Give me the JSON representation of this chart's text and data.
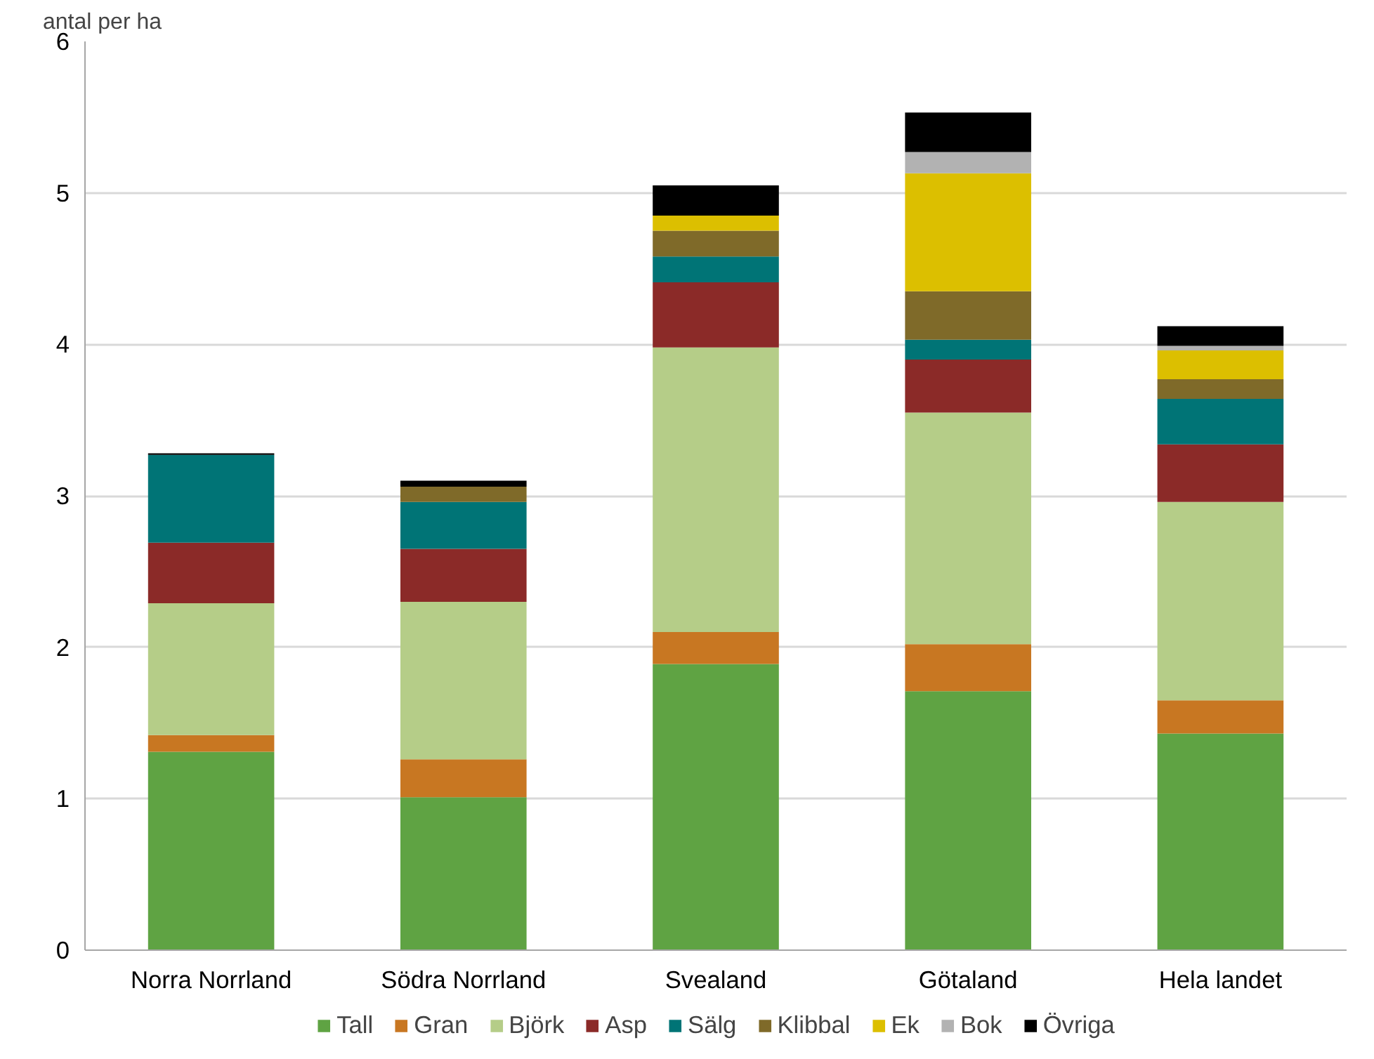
{
  "chart_data": {
    "type": "bar",
    "stacked": true,
    "ylabel": "antal per ha",
    "categories": [
      "Norra Norrland",
      "Södra Norrland",
      "Svealand",
      "Götaland",
      "Hela landet"
    ],
    "series": [
      {
        "name": "Tall",
        "color": "#5fa343",
        "values": [
          1.31,
          1.01,
          1.89,
          1.71,
          1.43
        ]
      },
      {
        "name": "Gran",
        "color": "#c87722",
        "values": [
          0.11,
          0.25,
          0.21,
          0.31,
          0.22
        ]
      },
      {
        "name": "Björk",
        "color": "#b5cd88",
        "values": [
          0.87,
          1.04,
          1.88,
          1.53,
          1.31
        ]
      },
      {
        "name": "Asp",
        "color": "#8b2a28",
        "values": [
          0.4,
          0.35,
          0.43,
          0.35,
          0.38
        ]
      },
      {
        "name": "Sälg",
        "color": "#007476",
        "values": [
          0.58,
          0.31,
          0.17,
          0.13,
          0.3
        ]
      },
      {
        "name": "Klibbal",
        "color": "#7f6a29",
        "values": [
          0,
          0.1,
          0.17,
          0.32,
          0.13
        ]
      },
      {
        "name": "Ek",
        "color": "#dcbf00",
        "values": [
          0,
          0,
          0.1,
          0.78,
          0.19
        ]
      },
      {
        "name": "Bok",
        "color": "#b2b2b2",
        "values": [
          0,
          0,
          0,
          0.14,
          0.03
        ]
      },
      {
        "name": "Övriga",
        "color": "#000000",
        "values": [
          0.01,
          0.04,
          0.2,
          0.26,
          0.13
        ]
      }
    ],
    "ylim": [
      0,
      6
    ],
    "yticks": [
      0,
      1,
      2,
      3,
      4,
      5,
      6
    ],
    "grid": "y",
    "legend": "bottom"
  }
}
